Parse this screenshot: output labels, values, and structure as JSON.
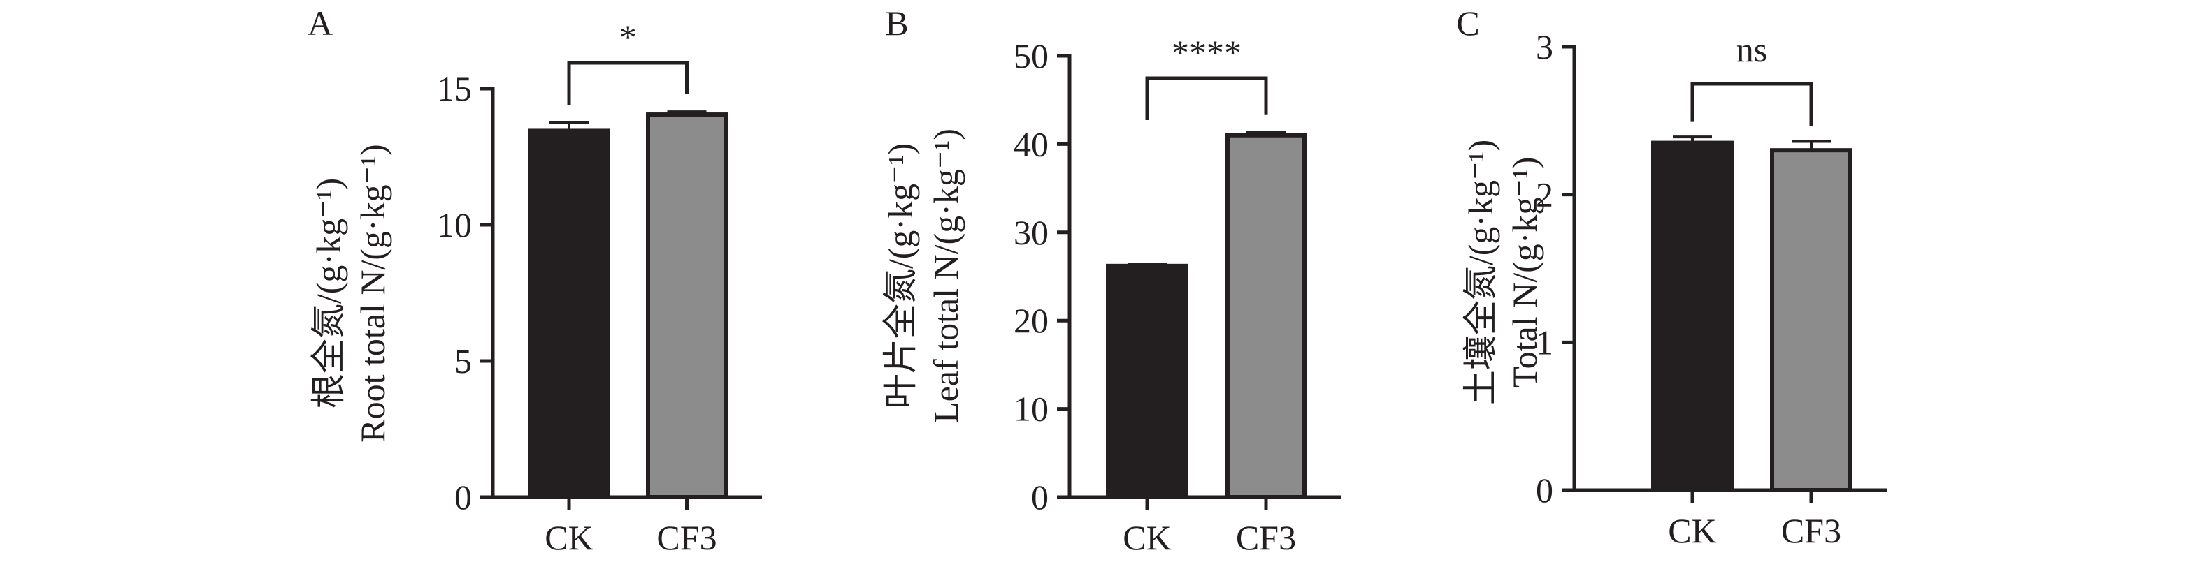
{
  "colors": {
    "axis": "#231f20",
    "bar_ck": "#231f20",
    "bar_cf3": "#8c8c8c",
    "bar_outline": "#231f20"
  },
  "chart_data": [
    {
      "type": "bar",
      "panel": "A",
      "categories": [
        "CK",
        "CF3"
      ],
      "values": [
        13.45,
        14.05
      ],
      "errors": [
        0.3,
        0.1
      ],
      "ylabel_line1": "根全氮/(g·kg⁻¹)",
      "ylabel_line2": "Root total N/(g·kg⁻¹)",
      "ylim": [
        0,
        15
      ],
      "yticks": [
        0,
        5,
        10,
        15
      ],
      "significance": "*",
      "grid": false
    },
    {
      "type": "bar",
      "panel": "B",
      "categories": [
        "CK",
        "CF3"
      ],
      "values": [
        26.2,
        41.0
      ],
      "errors": [
        0.15,
        0.3
      ],
      "ylabel_line1": "叶片全氮/(g·kg⁻¹)",
      "ylabel_line2": "Leaf total N/(g·kg⁻¹)",
      "ylim": [
        0,
        50
      ],
      "yticks": [
        0,
        10,
        20,
        30,
        40,
        50
      ],
      "significance": "****",
      "grid": false
    },
    {
      "type": "bar",
      "panel": "C",
      "categories": [
        "CK",
        "CF3"
      ],
      "values": [
        2.35,
        2.3
      ],
      "errors": [
        0.04,
        0.06
      ],
      "ylabel_line1": "土壤全氮/(g·kg⁻¹)",
      "ylabel_line2": "Total N/(g·kg⁻¹)",
      "ylim": [
        0,
        3
      ],
      "yticks": [
        0,
        1,
        2,
        3
      ],
      "significance": "ns",
      "grid": false
    }
  ]
}
